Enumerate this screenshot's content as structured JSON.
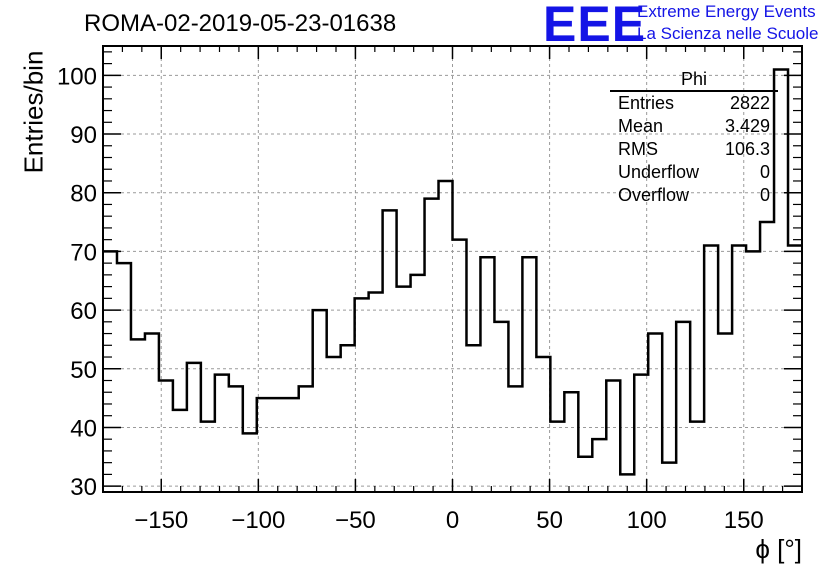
{
  "header": {
    "title": "ROMA-02-2019-05-23-01638",
    "logo_mark": "EEE",
    "logo_line1": "Extreme Energy Events",
    "logo_line2": "La Scienza nelle Scuole"
  },
  "colors": {
    "logo": "#1414e6",
    "histogram": "#000000",
    "grid": "#9a9a9a"
  },
  "stats": {
    "title": "Phi",
    "rows": [
      {
        "label": "Entries",
        "value": "2822"
      },
      {
        "label": "Mean",
        "value": "3.429"
      },
      {
        "label": "RMS",
        "value": "106.3"
      },
      {
        "label": "Underflow",
        "value": "0"
      },
      {
        "label": "Overflow",
        "value": "0"
      }
    ]
  },
  "chart_data": {
    "type": "histogram",
    "title": "ROMA-02-2019-05-23-01638",
    "xlabel": "ϕ [°]",
    "ylabel": "Entries/bin",
    "xlim": [
      -180,
      180
    ],
    "ylim": [
      29,
      105
    ],
    "bin_width": 7.2,
    "xticks": [
      -150,
      -100,
      -50,
      0,
      50,
      100,
      150
    ],
    "xtick_labels": [
      "−150",
      "−100",
      "−50",
      "0",
      "50",
      "100",
      "150"
    ],
    "yticks": [
      30,
      40,
      50,
      60,
      70,
      80,
      90,
      100
    ],
    "ytick_labels": [
      "30",
      "40",
      "50",
      "60",
      "70",
      "80",
      "90",
      "100"
    ],
    "grid": true,
    "legend": "top-right stats box",
    "values": [
      70,
      68,
      55,
      56,
      48,
      43,
      51,
      41,
      49,
      47,
      39,
      45,
      45,
      45,
      47,
      60,
      52,
      54,
      62,
      63,
      77,
      64,
      66,
      79,
      82,
      72,
      54,
      69,
      58,
      47,
      69,
      52,
      41,
      46,
      35,
      38,
      48,
      32,
      49,
      56,
      34,
      58,
      41,
      71,
      56,
      71,
      70,
      75,
      101,
      71
    ]
  }
}
